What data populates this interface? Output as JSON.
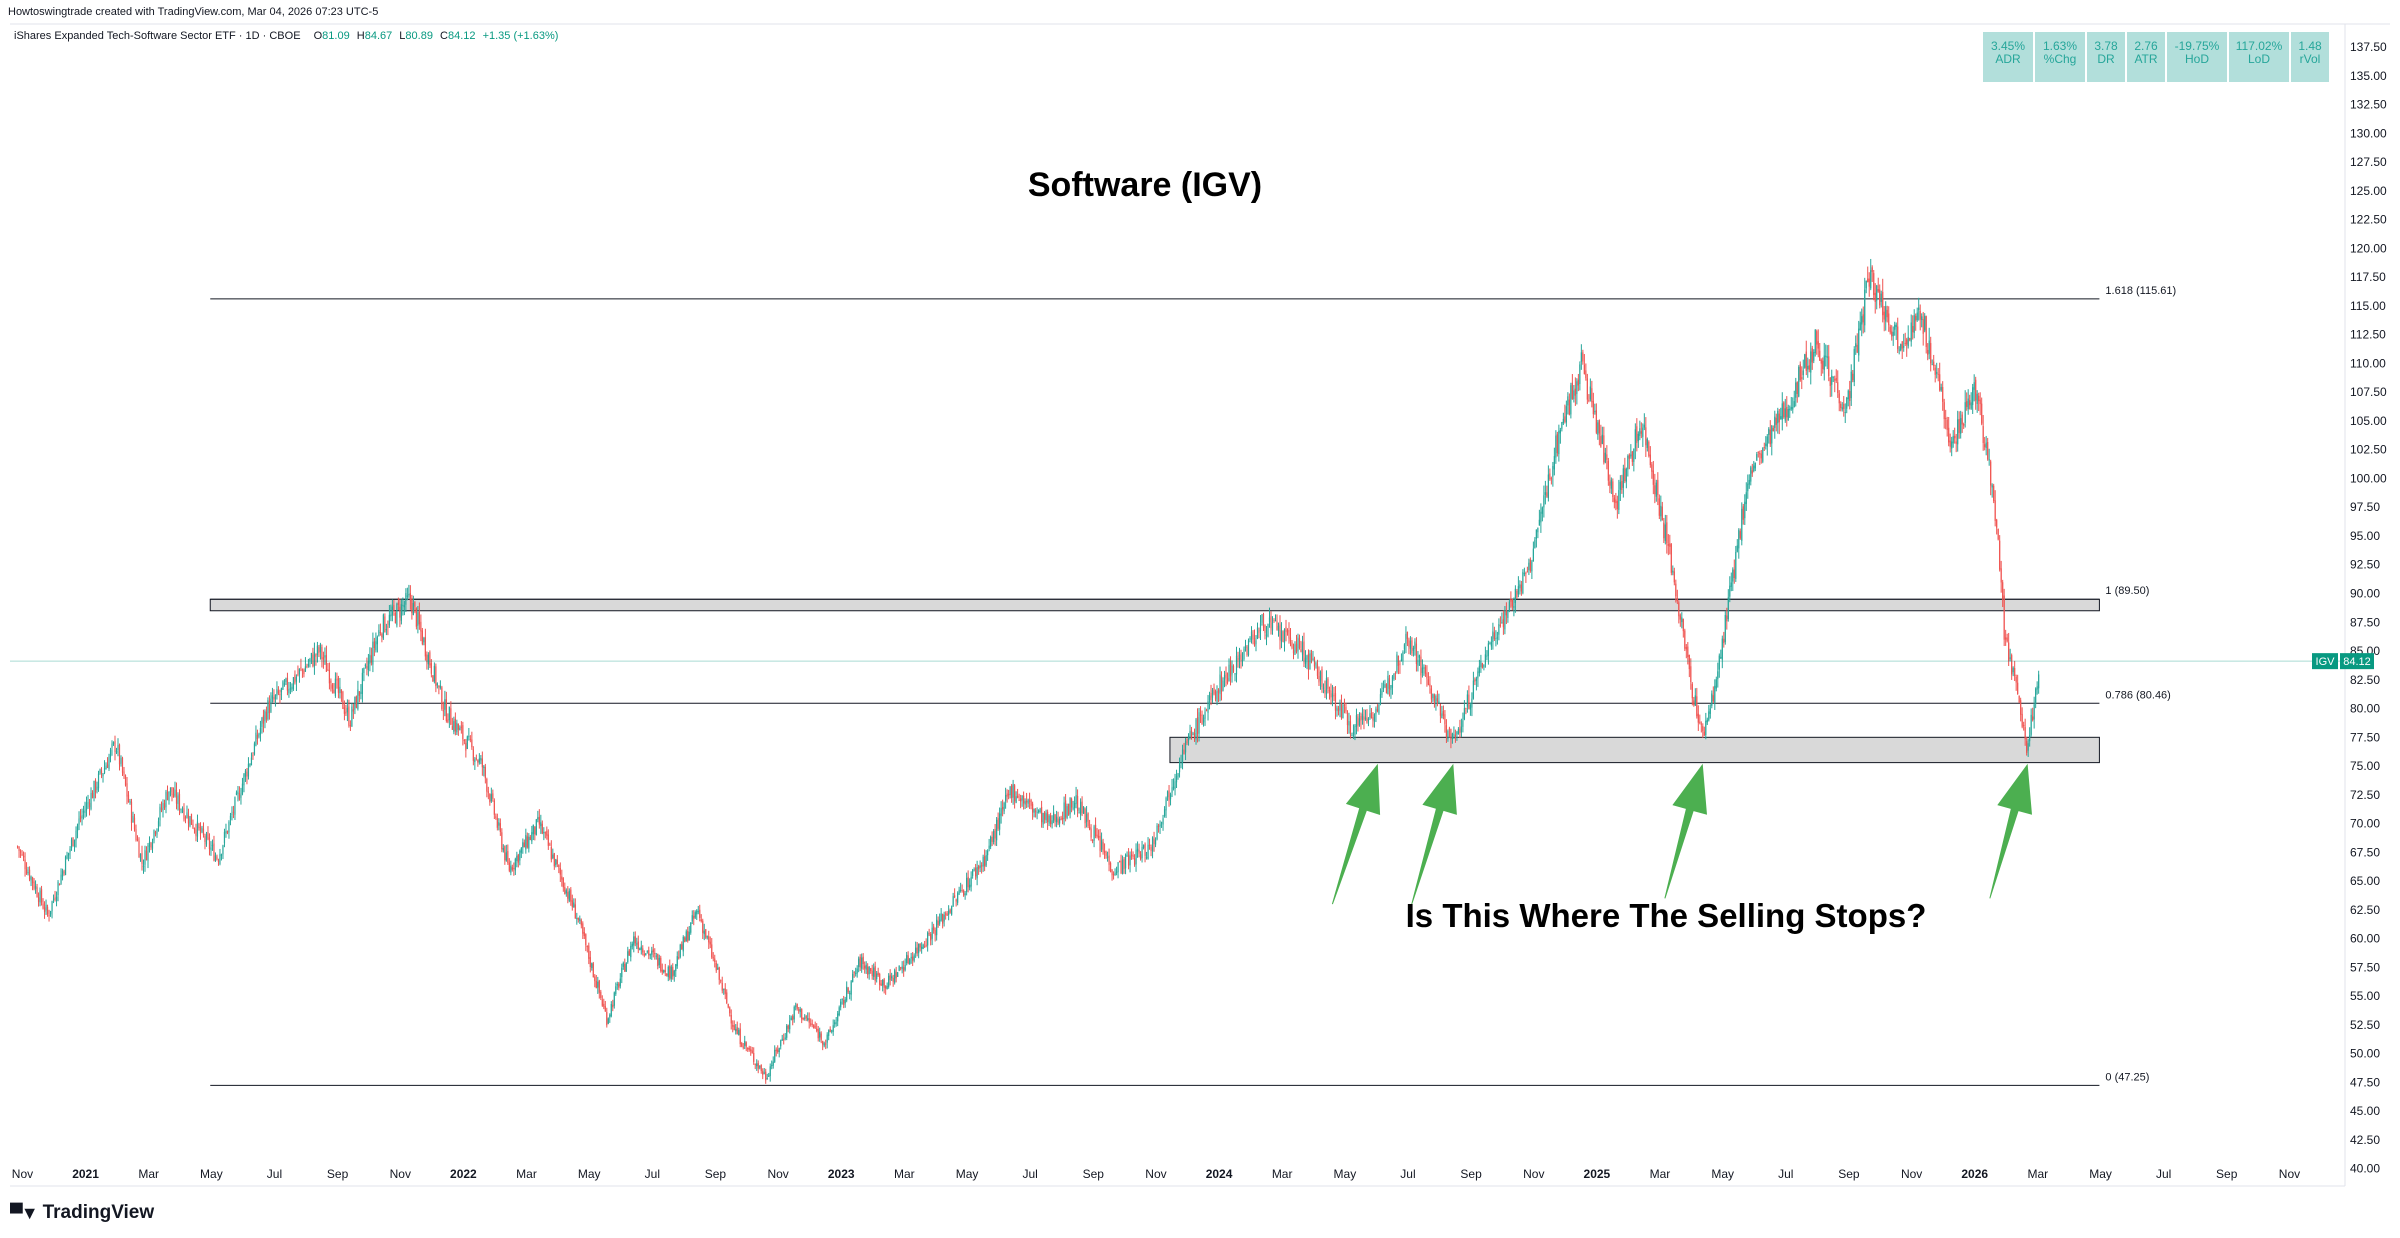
{
  "header": {
    "credit": "Howtoswingtrade created with TradingView.com, Mar 04, 2026 07:23 UTC-5"
  },
  "legend": {
    "symbol": "iShares Expanded Tech-Software Sector ETF · 1D · CBOE",
    "o_label": "O",
    "o_value": "81.09",
    "h_label": "H",
    "h_value": "84.67",
    "l_label": "L",
    "l_value": "80.89",
    "c_label": "C",
    "c_value": "84.12",
    "change": "+1.35 (+1.63%)"
  },
  "stats": [
    {
      "value": "3.45%",
      "label": "ADR"
    },
    {
      "value": "1.63%",
      "label": "%Chg"
    },
    {
      "value": "3.78",
      "label": "DR"
    },
    {
      "value": "2.76",
      "label": "ATR"
    },
    {
      "value": "-19.75%",
      "label": "HoD"
    },
    {
      "value": "117.02%",
      "label": "LoD"
    },
    {
      "value": "1.48",
      "label": "rVol"
    }
  ],
  "colors": {
    "up": "#26a69a",
    "down": "#ef5350",
    "arrow": "#4caf50",
    "zone_fill": "#d9d9d9",
    "line": "#131722",
    "price_tag": "#089981"
  },
  "branding": {
    "name": "TradingView",
    "logo_icon": "tradingview-logo-icon"
  },
  "chart_data": {
    "type": "candlestick",
    "title": "Software (IGV)",
    "annotation": "Is This Where The Selling Stops?",
    "timeframe": "1D",
    "ylim": [
      38.5,
      139.5
    ],
    "y_ticks": [
      "40.00",
      "42.50",
      "45.00",
      "47.50",
      "50.00",
      "52.50",
      "55.00",
      "57.50",
      "60.00",
      "62.50",
      "65.00",
      "67.50",
      "70.00",
      "72.50",
      "75.00",
      "77.50",
      "80.00",
      "82.50",
      "85.00",
      "87.50",
      "90.00",
      "92.50",
      "95.00",
      "97.50",
      "100.00",
      "102.50",
      "105.00",
      "107.50",
      "110.00",
      "112.50",
      "115.00",
      "117.50",
      "120.00",
      "122.50",
      "125.00",
      "127.50",
      "130.00",
      "132.50",
      "135.00",
      "137.50"
    ],
    "x_ticks": [
      {
        "label": "Nov",
        "bold": false,
        "t": 2020.833
      },
      {
        "label": "2021",
        "bold": true,
        "t": 2021.0
      },
      {
        "label": "Mar",
        "bold": false,
        "t": 2021.167
      },
      {
        "label": "May",
        "bold": false,
        "t": 2021.333
      },
      {
        "label": "Jul",
        "bold": false,
        "t": 2021.5
      },
      {
        "label": "Sep",
        "bold": false,
        "t": 2021.667
      },
      {
        "label": "Nov",
        "bold": false,
        "t": 2021.833
      },
      {
        "label": "2022",
        "bold": true,
        "t": 2022.0
      },
      {
        "label": "Mar",
        "bold": false,
        "t": 2022.167
      },
      {
        "label": "May",
        "bold": false,
        "t": 2022.333
      },
      {
        "label": "Jul",
        "bold": false,
        "t": 2022.5
      },
      {
        "label": "Sep",
        "bold": false,
        "t": 2022.667
      },
      {
        "label": "Nov",
        "bold": false,
        "t": 2022.833
      },
      {
        "label": "2023",
        "bold": true,
        "t": 2023.0
      },
      {
        "label": "Mar",
        "bold": false,
        "t": 2023.167
      },
      {
        "label": "May",
        "bold": false,
        "t": 2023.333
      },
      {
        "label": "Jul",
        "bold": false,
        "t": 2023.5
      },
      {
        "label": "Sep",
        "bold": false,
        "t": 2023.667
      },
      {
        "label": "Nov",
        "bold": false,
        "t": 2023.833
      },
      {
        "label": "2024",
        "bold": true,
        "t": 2024.0
      },
      {
        "label": "Mar",
        "bold": false,
        "t": 2024.167
      },
      {
        "label": "May",
        "bold": false,
        "t": 2024.333
      },
      {
        "label": "Jul",
        "bold": false,
        "t": 2024.5
      },
      {
        "label": "Sep",
        "bold": false,
        "t": 2024.667
      },
      {
        "label": "Nov",
        "bold": false,
        "t": 2024.833
      },
      {
        "label": "2025",
        "bold": true,
        "t": 2025.0
      },
      {
        "label": "Mar",
        "bold": false,
        "t": 2025.167
      },
      {
        "label": "May",
        "bold": false,
        "t": 2025.333
      },
      {
        "label": "Jul",
        "bold": false,
        "t": 2025.5
      },
      {
        "label": "Sep",
        "bold": false,
        "t": 2025.667
      },
      {
        "label": "Nov",
        "bold": false,
        "t": 2025.833
      },
      {
        "label": "2026",
        "bold": true,
        "t": 2026.0
      },
      {
        "label": "Mar",
        "bold": false,
        "t": 2026.167
      },
      {
        "label": "May",
        "bold": false,
        "t": 2026.333
      },
      {
        "label": "Jul",
        "bold": false,
        "t": 2026.5
      },
      {
        "label": "Sep",
        "bold": false,
        "t": 2026.667
      },
      {
        "label": "Nov",
        "bold": false,
        "t": 2026.833
      }
    ],
    "fib_levels": [
      {
        "label": "1.618 (115.61)",
        "price": 115.61
      },
      {
        "label": "1 (89.50)",
        "price": 89.5
      },
      {
        "label": "0.786 (80.46)",
        "price": 80.46
      },
      {
        "label": "0 (47.25)",
        "price": 47.25
      }
    ],
    "fib_start": 2021.33,
    "fib_end": 2026.33,
    "zones": [
      {
        "from": 2021.33,
        "to": 2026.33,
        "low": 88.5,
        "high": 89.5
      },
      {
        "from": 2023.87,
        "to": 2026.33,
        "low": 75.3,
        "high": 77.5
      }
    ],
    "arrows": [
      {
        "tail": [
          2024.3,
          63.0
        ],
        "head": [
          2024.42,
          75.2
        ]
      },
      {
        "tail": [
          2024.51,
          63.0
        ],
        "head": [
          2024.62,
          75.2
        ]
      },
      {
        "tail": [
          2025.18,
          63.5
        ],
        "head": [
          2025.28,
          75.2
        ]
      },
      {
        "tail": [
          2026.04,
          63.5
        ],
        "head": [
          2026.14,
          75.2
        ]
      }
    ],
    "last_price": {
      "symbol": "IGV",
      "value": "84.12",
      "price": 84.12
    },
    "price_path": [
      [
        2020.82,
        68.0
      ],
      [
        2020.9,
        62.0
      ],
      [
        2020.98,
        70.0
      ],
      [
        2021.08,
        77.0
      ],
      [
        2021.15,
        66.5
      ],
      [
        2021.22,
        73.0
      ],
      [
        2021.35,
        67.0
      ],
      [
        2021.48,
        80.0
      ],
      [
        2021.62,
        85.0
      ],
      [
        2021.7,
        79.0
      ],
      [
        2021.78,
        87.0
      ],
      [
        2021.86,
        89.5
      ],
      [
        2021.95,
        80.0
      ],
      [
        2022.05,
        75.0
      ],
      [
        2022.12,
        66.0
      ],
      [
        2022.2,
        70.0
      ],
      [
        2022.3,
        62.0
      ],
      [
        2022.38,
        53.0
      ],
      [
        2022.45,
        60.0
      ],
      [
        2022.55,
        57.0
      ],
      [
        2022.62,
        62.5
      ],
      [
        2022.72,
        52.0
      ],
      [
        2022.8,
        48.0
      ],
      [
        2022.88,
        54.0
      ],
      [
        2022.96,
        51.0
      ],
      [
        2023.05,
        58.0
      ],
      [
        2023.12,
        56.0
      ],
      [
        2023.25,
        61.0
      ],
      [
        2023.38,
        67.0
      ],
      [
        2023.45,
        73.0
      ],
      [
        2023.55,
        70.0
      ],
      [
        2023.62,
        72.0
      ],
      [
        2023.72,
        66.0
      ],
      [
        2023.82,
        68.0
      ],
      [
        2023.9,
        76.0
      ],
      [
        2024.0,
        82.0
      ],
      [
        2024.12,
        87.5
      ],
      [
        2024.22,
        85.0
      ],
      [
        2024.35,
        78.5
      ],
      [
        2024.42,
        80.0
      ],
      [
        2024.5,
        86.5
      ],
      [
        2024.58,
        80.0
      ],
      [
        2024.62,
        77.0
      ],
      [
        2024.72,
        86.0
      ],
      [
        2024.82,
        92.0
      ],
      [
        2024.9,
        104.0
      ],
      [
        2024.96,
        110.0
      ],
      [
        2025.05,
        98.0
      ],
      [
        2025.12,
        105.0
      ],
      [
        2025.2,
        92.0
      ],
      [
        2025.25,
        82.0
      ],
      [
        2025.28,
        77.5
      ],
      [
        2025.32,
        83.0
      ],
      [
        2025.4,
        100.0
      ],
      [
        2025.5,
        106.0
      ],
      [
        2025.58,
        112.0
      ],
      [
        2025.66,
        106.0
      ],
      [
        2025.72,
        117.5
      ],
      [
        2025.8,
        112.0
      ],
      [
        2025.86,
        114.0
      ],
      [
        2025.94,
        103.0
      ],
      [
        2026.0,
        108.0
      ],
      [
        2026.05,
        99.0
      ],
      [
        2026.08,
        86.0
      ],
      [
        2026.12,
        80.0
      ],
      [
        2026.14,
        76.5
      ],
      [
        2026.16,
        81.0
      ],
      [
        2026.17,
        84.12
      ]
    ]
  }
}
